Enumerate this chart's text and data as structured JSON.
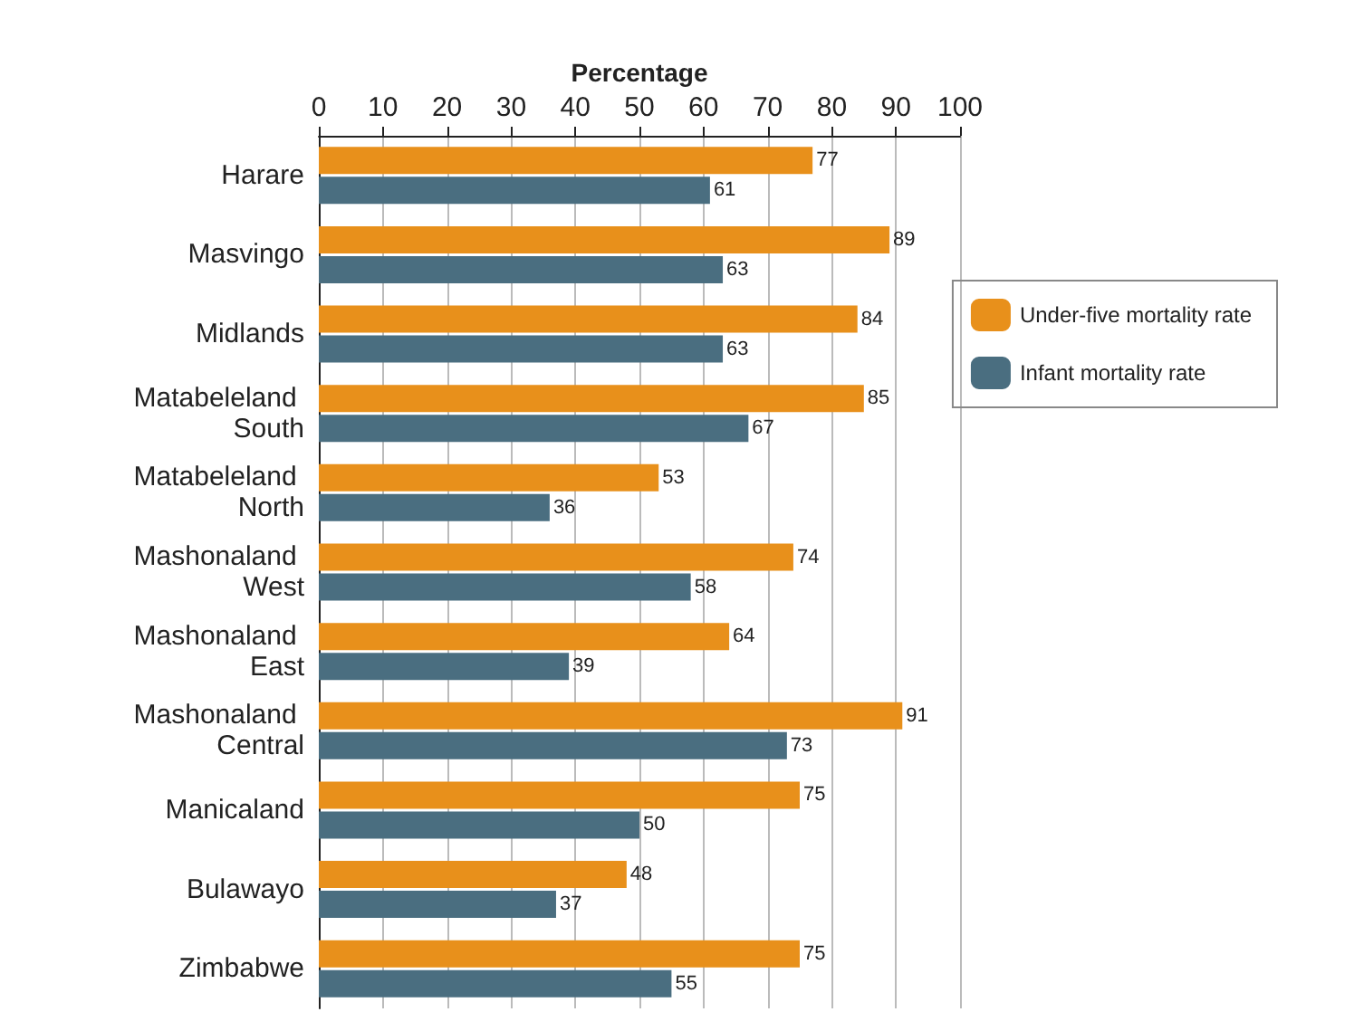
{
  "chart_data": {
    "type": "bar",
    "orientation": "horizontal",
    "xlabel": "Percentage",
    "categories": [
      "Harare",
      "Masvingo",
      "Midlands",
      "Matabeleland South",
      "Matabeleland North",
      "Mashonaland West",
      "Mashonaland East",
      "Mashonaland Central",
      "Manicaland",
      "Bulawayo",
      "Zimbabwe"
    ],
    "series": [
      {
        "name": "Under-five mortality rate",
        "color": "#e8901b",
        "values": [
          77,
          89,
          84,
          85,
          53,
          74,
          64,
          91,
          75,
          48,
          75
        ]
      },
      {
        "name": "Infant mortality rate",
        "color": "#4a6e80",
        "values": [
          61,
          63,
          63,
          67,
          36,
          58,
          39,
          73,
          50,
          37,
          55
        ]
      }
    ],
    "xlim": [
      0,
      100
    ],
    "xticks": [
      0,
      10,
      20,
      30,
      40,
      50,
      60,
      70,
      80,
      90,
      100
    ],
    "data_labels": true,
    "grid": "x",
    "legend": "right"
  }
}
